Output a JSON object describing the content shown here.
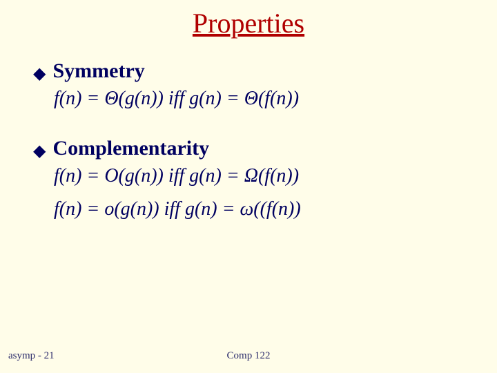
{
  "colors": {
    "background": "#fffde9",
    "title": "#b00000",
    "body": "#000060",
    "footer": "#2a2a6a"
  },
  "typography": {
    "family": "Times New Roman",
    "title_size_pt": 40,
    "bullet_label_size_pt": 30,
    "equation_size_pt": 28,
    "footer_size_pt": 15
  },
  "title": "Properties",
  "sections": [
    {
      "heading": "Symmetry",
      "equations": [
        "f(n) = Θ(g(n)) iff g(n) = Θ(f(n))"
      ]
    },
    {
      "heading": "Complementarity",
      "equations": [
        "f(n) = O(g(n)) iff g(n) = Ω(f(n))",
        "f(n) =  o(g(n)) iff g(n) = ω((f(n))"
      ]
    }
  ],
  "footer": {
    "left": "asymp - 21",
    "center": "Comp 122"
  }
}
